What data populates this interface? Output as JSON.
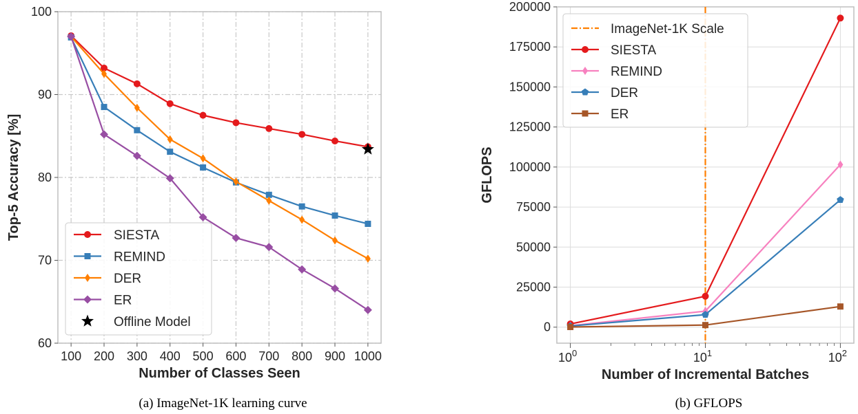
{
  "chart_data": [
    {
      "type": "line",
      "caption": "(a) ImageNet-1K learning curve",
      "xlabel": "Number of Classes Seen",
      "ylabel": "Top-5 Accuracy [%]",
      "x": [
        100,
        200,
        300,
        400,
        500,
        600,
        700,
        800,
        900,
        1000
      ],
      "xticks": [
        "100",
        "200",
        "300",
        "400",
        "500",
        "600",
        "700",
        "800",
        "900",
        "1000"
      ],
      "ylim": [
        60,
        100
      ],
      "yticks": [
        "60",
        "70",
        "80",
        "90",
        "100"
      ],
      "grid": true,
      "legend_position": "lower-left",
      "series": [
        {
          "name": "SIESTA",
          "color": "#e41a1c",
          "marker": "circle",
          "values": [
            97.1,
            93.2,
            91.3,
            88.9,
            87.5,
            86.6,
            85.9,
            85.2,
            84.4,
            83.7
          ]
        },
        {
          "name": "REMIND",
          "color": "#377eb8",
          "marker": "square",
          "values": [
            96.9,
            88.5,
            85.7,
            83.1,
            81.2,
            79.4,
            77.9,
            76.5,
            75.4,
            74.4
          ]
        },
        {
          "name": "DER",
          "color": "#ff7f00",
          "marker": "thin-diamond",
          "values": [
            97.0,
            92.5,
            88.4,
            84.6,
            82.3,
            79.5,
            77.2,
            74.9,
            72.4,
            70.2
          ]
        },
        {
          "name": "ER",
          "color": "#984ea3",
          "marker": "diamond",
          "values": [
            97.0,
            85.2,
            82.6,
            79.9,
            75.2,
            72.7,
            71.6,
            68.9,
            66.6,
            64.0
          ]
        }
      ],
      "extra_points": [
        {
          "name": "Offline Model",
          "color": "#000000",
          "marker": "star",
          "x": 1000,
          "y": 83.4
        }
      ]
    },
    {
      "type": "line",
      "caption": "(b) GFLOPS",
      "xlabel": "Number of Incremental Batches",
      "ylabel": "GFLOPS",
      "xscale": "log",
      "x": [
        1,
        10,
        100
      ],
      "xticks": [
        {
          "base": "10",
          "exp": "0"
        },
        {
          "base": "10",
          "exp": "1"
        },
        {
          "base": "10",
          "exp": "2"
        }
      ],
      "ylim": [
        -10000,
        200000
      ],
      "yticks": [
        "0",
        "25000",
        "50000",
        "75000",
        "100000",
        "125000",
        "150000",
        "175000",
        "200000"
      ],
      "grid": true,
      "legend_position": "upper-left",
      "vline": {
        "name": "ImageNet-1K Scale",
        "x": 10,
        "color": "#ff7f00"
      },
      "series": [
        {
          "name": "SIESTA",
          "color": "#e41a1c",
          "marker": "circle",
          "values": [
            2000,
            19300,
            193000
          ]
        },
        {
          "name": "REMIND",
          "color": "#f781bf",
          "marker": "thin-diamond",
          "values": [
            900,
            10000,
            101500
          ]
        },
        {
          "name": "DER",
          "color": "#377eb8",
          "marker": "pentagon",
          "values": [
            700,
            7800,
            79500
          ]
        },
        {
          "name": "ER",
          "color": "#a65628",
          "marker": "square",
          "values": [
            100,
            1300,
            12900
          ]
        }
      ]
    }
  ]
}
